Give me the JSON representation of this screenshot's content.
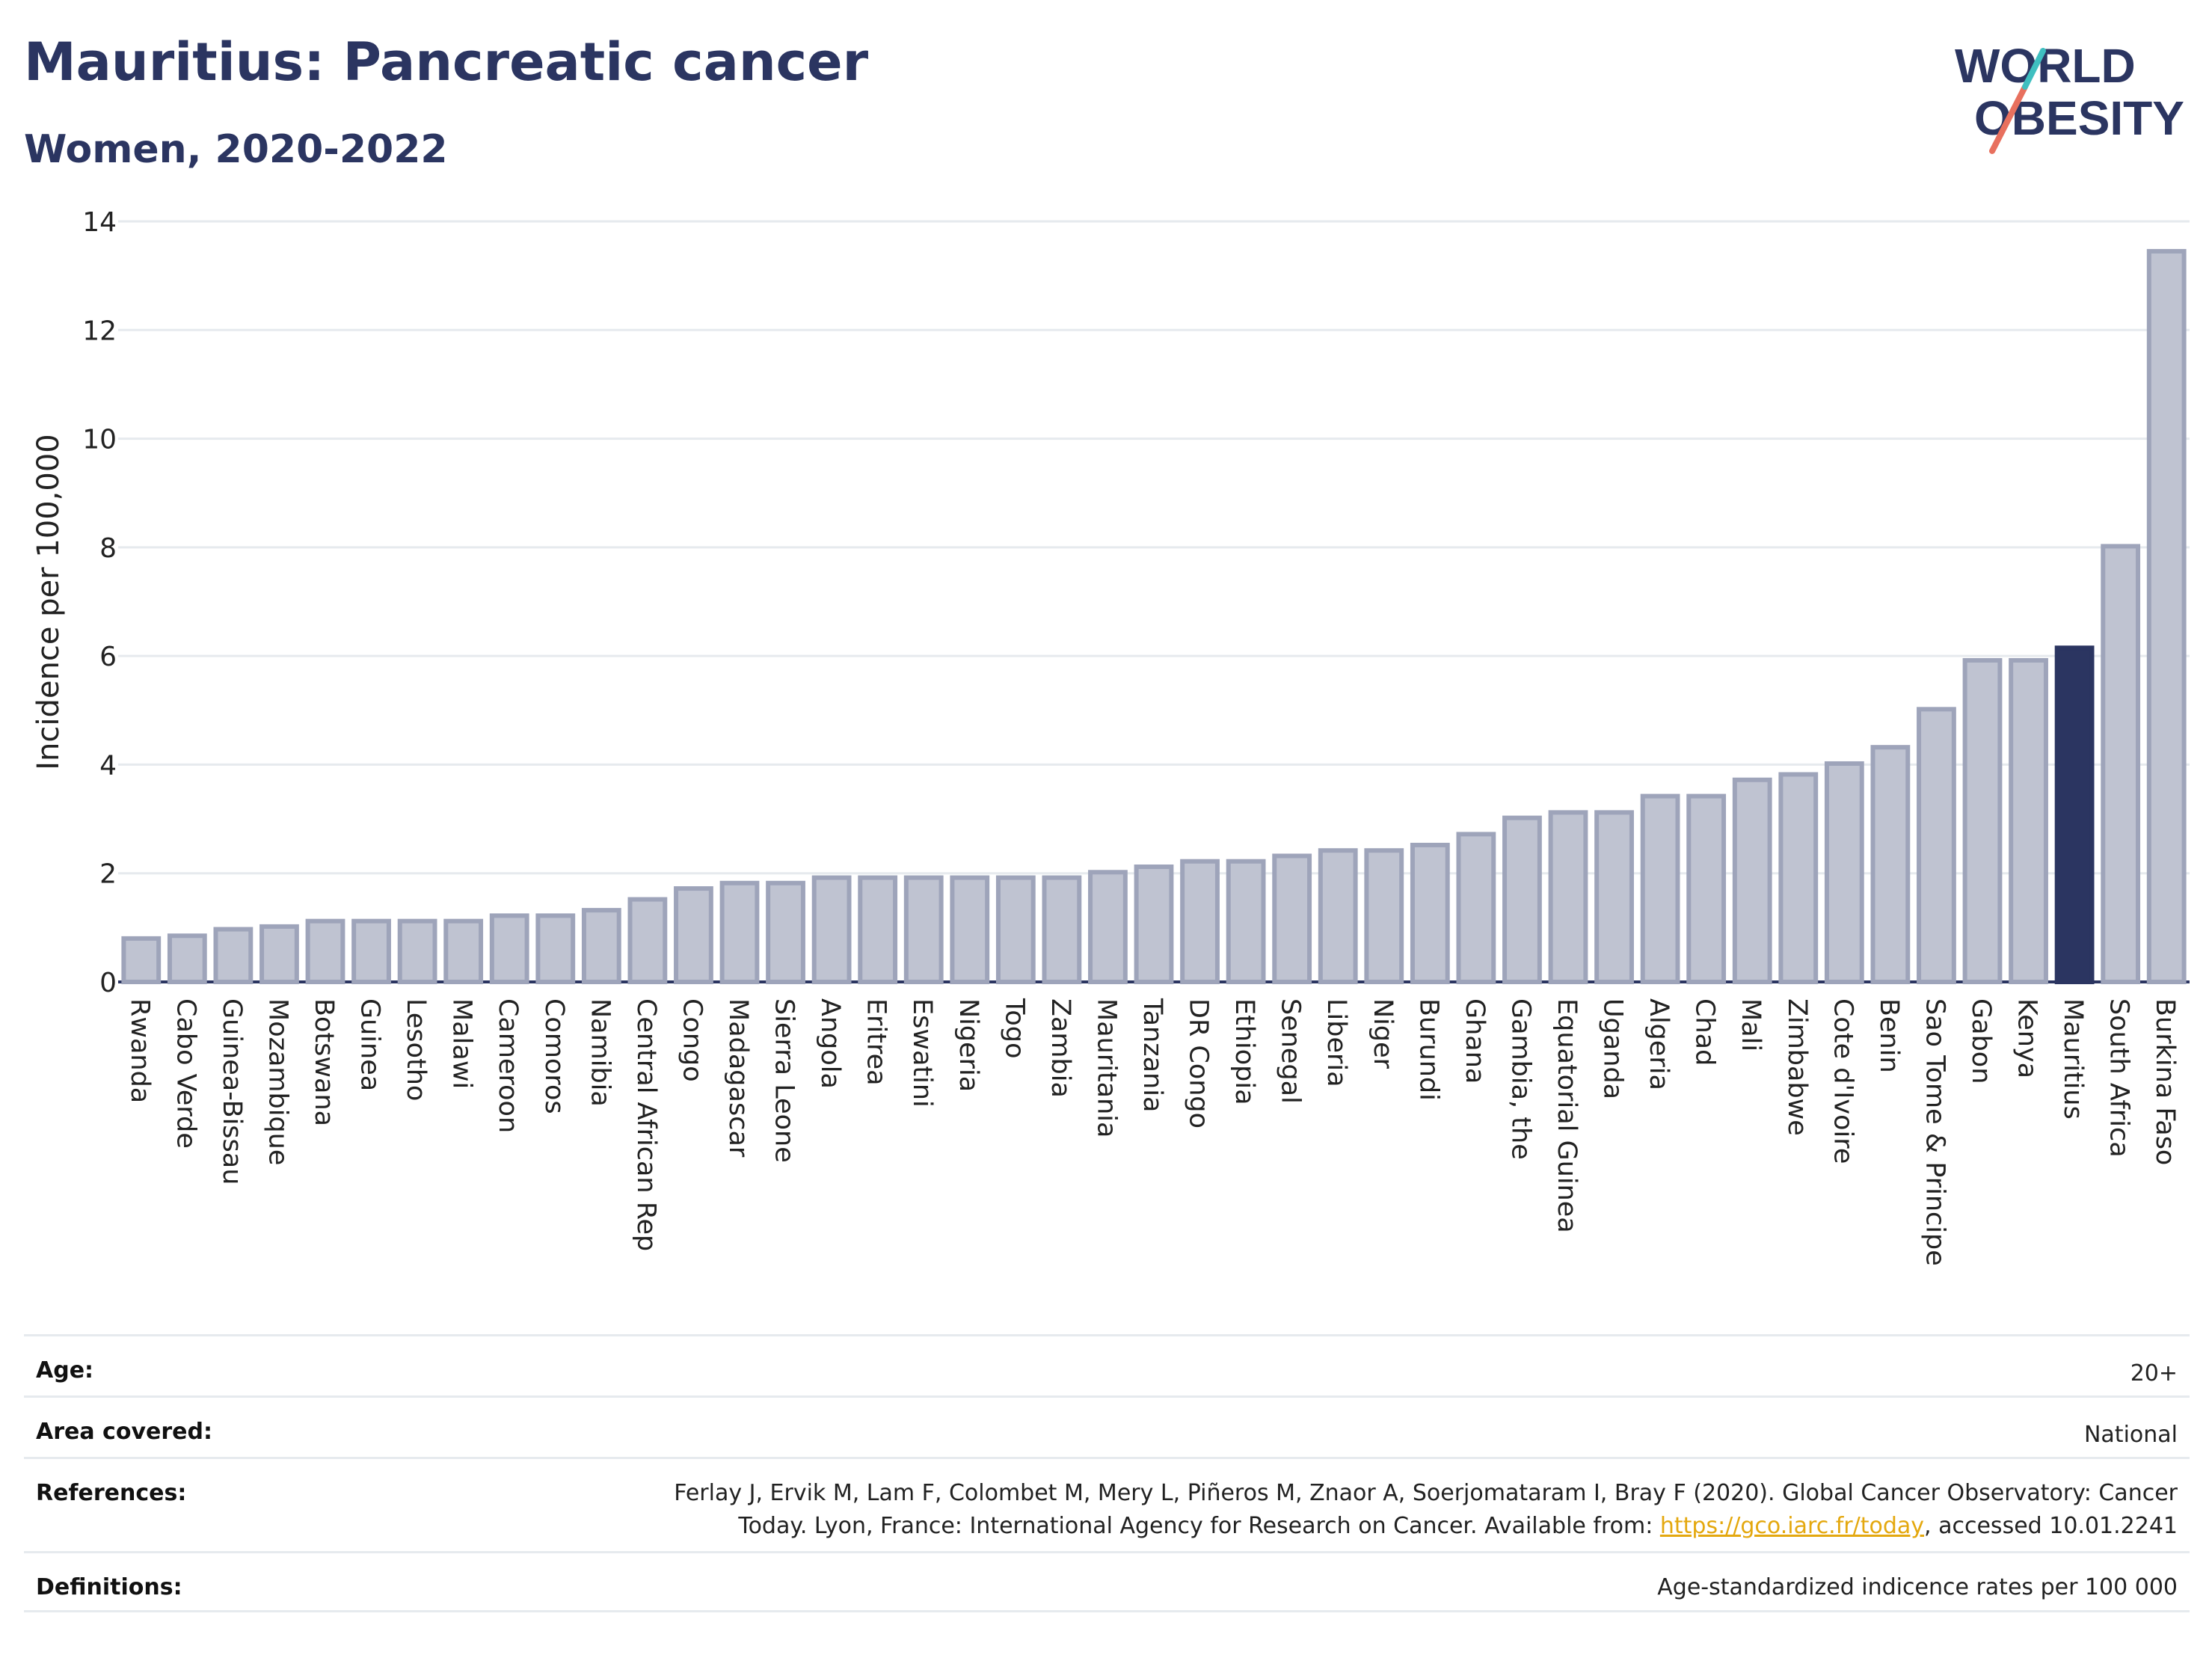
{
  "header": {
    "title": "Mauritius: Pancreatic cancer",
    "subtitle": "Women, 2020-2022"
  },
  "logo": {
    "line1": "WORLD",
    "line2": "OBESITY"
  },
  "chart_data": {
    "type": "bar",
    "ylabel": "Incidence per 100,000",
    "ylim": [
      0,
      14
    ],
    "yticks": [
      0,
      2,
      4,
      6,
      8,
      10,
      12,
      14
    ],
    "grid": true,
    "highlight": "Mauritius",
    "colors": {
      "bar": "#bfc3d1",
      "bar_edge": "#9ea4ba",
      "highlight": "#2b3561",
      "grid": "#e6eaee"
    },
    "categories": [
      "Rwanda",
      "Cabo Verde",
      "Guinea-Bissau",
      "Mozambique",
      "Botswana",
      "Guinea",
      "Lesotho",
      "Malawi",
      "Cameroon",
      "Comoros",
      "Namibia",
      "Central African Rep",
      "Congo",
      "Madagascar",
      "Sierra Leone",
      "Angola",
      "Eritrea",
      "Eswatini",
      "Nigeria",
      "Togo",
      "Zambia",
      "Mauritania",
      "Tanzania",
      "DR Congo",
      "Ethiopia",
      "Senegal",
      "Liberia",
      "Niger",
      "Burundi",
      "Ghana",
      "Gambia, the",
      "Equatorial Guinea",
      "Uganda",
      "Algeria",
      "Chad",
      "Mali",
      "Zimbabwe",
      "Cote d'Ivoire",
      "Benin",
      "Sao Tome & Principe",
      "Gabon",
      "Kenya",
      "Mauritius",
      "South Africa",
      "Burkina Faso"
    ],
    "values": [
      0.8,
      0.85,
      0.97,
      1.02,
      1.12,
      1.12,
      1.12,
      1.12,
      1.22,
      1.22,
      1.32,
      1.52,
      1.72,
      1.82,
      1.82,
      1.92,
      1.92,
      1.92,
      1.92,
      1.92,
      1.92,
      2.02,
      2.12,
      2.22,
      2.22,
      2.32,
      2.42,
      2.42,
      2.52,
      2.72,
      3.02,
      3.12,
      3.12,
      3.42,
      3.42,
      3.72,
      3.82,
      4.02,
      4.32,
      5.02,
      5.92,
      5.92,
      6.15,
      8.02,
      13.45
    ]
  },
  "info": {
    "age_label": "Age:",
    "age_value": "20+",
    "area_label": "Area covered:",
    "area_value": "National",
    "references_label": "References:",
    "references_line1": "Ferlay J, Ervik M, Lam F, Colombet M, Mery L, Piñeros M, Znaor A, Soerjomataram I, Bray F (2020). Global Cancer Observatory: Cancer",
    "references_line2_pre": "Today. Lyon, France: International Agency for Research on Cancer. Available from: ",
    "references_link": "https://gco.iarc.fr/today",
    "references_line2_post": ", accessed 10.01.2241",
    "definitions_label": "Definitions:",
    "definitions_value": "Age-standardized indicence rates per 100 000"
  }
}
